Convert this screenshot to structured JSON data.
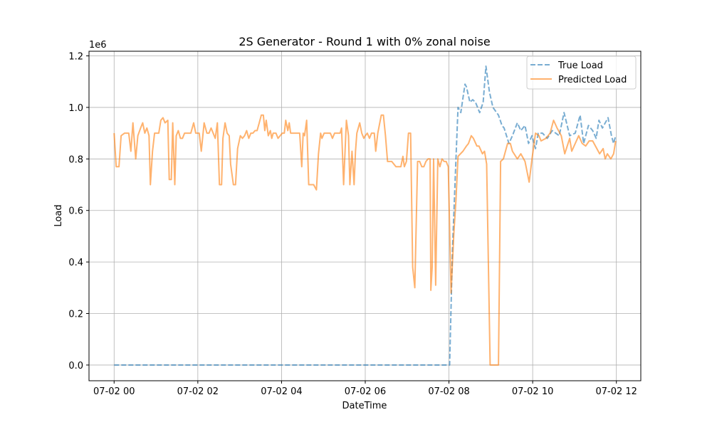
{
  "chart_data": {
    "type": "line",
    "title": "2S Generator - Round 1 with 0% zonal noise",
    "xlabel": "DateTime",
    "ylabel": "Load",
    "y_scale_label": "1e6",
    "x_unit": "minutes since 07-02 00:00",
    "xlim": [
      -36,
      755
    ],
    "ylim": [
      -0.061,
      1.218
    ],
    "grid": true,
    "legend_position": "top-right",
    "xticks": [
      {
        "value": 0,
        "label": "07-02 00"
      },
      {
        "value": 120,
        "label": "07-02 02"
      },
      {
        "value": 240,
        "label": "07-02 04"
      },
      {
        "value": 360,
        "label": "07-02 06"
      },
      {
        "value": 480,
        "label": "07-02 08"
      },
      {
        "value": 600,
        "label": "07-02 10"
      },
      {
        "value": 720,
        "label": "07-02 12"
      }
    ],
    "yticks": [
      {
        "value": 0,
        "label": "0.0"
      },
      {
        "value": 0.2,
        "label": "0.2"
      },
      {
        "value": 0.4,
        "label": "0.4"
      },
      {
        "value": 0.6,
        "label": "0.6"
      },
      {
        "value": 0.8,
        "label": "0.8"
      },
      {
        "value": 1.0,
        "label": "1.0"
      },
      {
        "value": 1.2,
        "label": "1.2"
      }
    ],
    "series": [
      {
        "name": "True Load",
        "color": "#1f77b4",
        "style": "dashed",
        "points": [
          [
            0,
            0
          ],
          [
            481,
            0
          ],
          [
            485,
            0.45
          ],
          [
            490,
            0.8
          ],
          [
            493,
            1.0
          ],
          [
            497,
            0.98
          ],
          [
            503,
            1.09
          ],
          [
            505,
            1.08
          ],
          [
            510,
            1.02
          ],
          [
            514,
            1.03
          ],
          [
            518,
            1.02
          ],
          [
            524,
            0.98
          ],
          [
            529,
            1.02
          ],
          [
            533,
            1.16
          ],
          [
            538,
            1.06
          ],
          [
            543,
            1.0
          ],
          [
            551,
            0.97
          ],
          [
            556,
            0.93
          ],
          [
            559,
            0.92
          ],
          [
            566,
            0.86
          ],
          [
            571,
            0.89
          ],
          [
            578,
            0.94
          ],
          [
            583,
            0.91
          ],
          [
            589,
            0.93
          ],
          [
            594,
            0.86
          ],
          [
            599,
            0.89
          ],
          [
            604,
            0.84
          ],
          [
            608,
            0.9
          ],
          [
            614,
            0.9
          ],
          [
            621,
            0.88
          ],
          [
            628,
            0.91
          ],
          [
            638,
            0.89
          ],
          [
            645,
            0.98
          ],
          [
            653,
            0.89
          ],
          [
            661,
            0.9
          ],
          [
            668,
            0.97
          ],
          [
            673,
            0.86
          ],
          [
            680,
            0.93
          ],
          [
            686,
            0.91
          ],
          [
            691,
            0.88
          ],
          [
            695,
            0.95
          ],
          [
            700,
            0.92
          ],
          [
            708,
            0.96
          ],
          [
            713,
            0.89
          ],
          [
            716,
            0.86
          ],
          [
            719,
            0.89
          ]
        ]
      },
      {
        "name": "Predicted Load",
        "color": "#ff7f0e",
        "style": "solid",
        "points": [
          [
            0,
            0.9
          ],
          [
            3,
            0.77
          ],
          [
            7,
            0.77
          ],
          [
            10,
            0.89
          ],
          [
            15,
            0.9
          ],
          [
            21,
            0.9
          ],
          [
            24,
            0.83
          ],
          [
            27,
            0.94
          ],
          [
            31,
            0.8
          ],
          [
            34,
            0.89
          ],
          [
            38,
            0.92
          ],
          [
            41,
            0.94
          ],
          [
            44,
            0.9
          ],
          [
            47,
            0.92
          ],
          [
            50,
            0.89
          ],
          [
            52,
            0.7
          ],
          [
            55,
            0.83
          ],
          [
            58,
            0.9
          ],
          [
            61,
            0.9
          ],
          [
            64,
            0.9
          ],
          [
            67,
            0.95
          ],
          [
            70,
            0.96
          ],
          [
            73,
            0.94
          ],
          [
            77,
            0.95
          ],
          [
            79,
            0.72
          ],
          [
            82,
            0.72
          ],
          [
            84,
            0.94
          ],
          [
            87,
            0.7
          ],
          [
            89,
            0.89
          ],
          [
            92,
            0.91
          ],
          [
            95,
            0.88
          ],
          [
            98,
            0.88
          ],
          [
            101,
            0.9
          ],
          [
            104,
            0.9
          ],
          [
            110,
            0.9
          ],
          [
            114,
            0.94
          ],
          [
            117,
            0.9
          ],
          [
            122,
            0.9
          ],
          [
            125,
            0.83
          ],
          [
            129,
            0.94
          ],
          [
            133,
            0.9
          ],
          [
            136,
            0.9
          ],
          [
            139,
            0.92
          ],
          [
            142,
            0.9
          ],
          [
            145,
            0.88
          ],
          [
            148,
            0.94
          ],
          [
            151,
            0.7
          ],
          [
            154,
            0.7
          ],
          [
            156,
            0.88
          ],
          [
            159,
            0.94
          ],
          [
            162,
            0.9
          ],
          [
            165,
            0.89
          ],
          [
            167,
            0.78
          ],
          [
            171,
            0.7
          ],
          [
            174,
            0.7
          ],
          [
            177,
            0.84
          ],
          [
            181,
            0.89
          ],
          [
            184,
            0.88
          ],
          [
            187,
            0.89
          ],
          [
            190,
            0.91
          ],
          [
            193,
            0.88
          ],
          [
            196,
            0.9
          ],
          [
            199,
            0.9
          ],
          [
            202,
            0.91
          ],
          [
            205,
            0.91
          ],
          [
            208,
            0.94
          ],
          [
            211,
            0.97
          ],
          [
            214,
            0.97
          ],
          [
            216,
            0.91
          ],
          [
            218,
            0.95
          ],
          [
            221,
            0.89
          ],
          [
            224,
            0.91
          ],
          [
            226,
            0.88
          ],
          [
            228,
            0.9
          ],
          [
            232,
            0.9
          ],
          [
            235,
            0.88
          ],
          [
            238,
            0.89
          ],
          [
            241,
            0.9
          ],
          [
            244,
            0.9
          ],
          [
            246,
            0.95
          ],
          [
            249,
            0.91
          ],
          [
            251,
            0.94
          ],
          [
            253,
            0.9
          ],
          [
            256,
            0.9
          ],
          [
            260,
            0.9
          ],
          [
            263,
            0.9
          ],
          [
            266,
            0.9
          ],
          [
            269,
            0.77
          ],
          [
            271,
            0.9
          ],
          [
            273,
            0.89
          ],
          [
            276,
            0.95
          ],
          [
            279,
            0.7
          ],
          [
            283,
            0.7
          ],
          [
            286,
            0.7
          ],
          [
            290,
            0.68
          ],
          [
            293,
            0.82
          ],
          [
            296,
            0.9
          ],
          [
            298,
            0.88
          ],
          [
            301,
            0.9
          ],
          [
            306,
            0.9
          ],
          [
            310,
            0.9
          ],
          [
            313,
            0.88
          ],
          [
            316,
            0.9
          ],
          [
            320,
            0.9
          ],
          [
            324,
            0.9
          ],
          [
            326,
            0.92
          ],
          [
            329,
            0.7
          ],
          [
            333,
            0.95
          ],
          [
            336,
            0.89
          ],
          [
            338,
            0.7
          ],
          [
            341,
            0.83
          ],
          [
            344,
            0.7
          ],
          [
            346,
            0.83
          ],
          [
            348,
            0.9
          ],
          [
            352,
            0.94
          ],
          [
            355,
            0.9
          ],
          [
            358,
            0.88
          ],
          [
            360,
            0.89
          ],
          [
            363,
            0.9
          ],
          [
            366,
            0.88
          ],
          [
            369,
            0.9
          ],
          [
            373,
            0.9
          ],
          [
            375,
            0.83
          ],
          [
            378,
            0.9
          ],
          [
            383,
            0.97
          ],
          [
            386,
            0.97
          ],
          [
            389,
            0.89
          ],
          [
            392,
            0.79
          ],
          [
            395,
            0.79
          ],
          [
            398,
            0.79
          ],
          [
            401,
            0.78
          ],
          [
            404,
            0.77
          ],
          [
            408,
            0.77
          ],
          [
            411,
            0.77
          ],
          [
            414,
            0.81
          ],
          [
            416,
            0.77
          ],
          [
            419,
            0.79
          ],
          [
            422,
            0.9
          ],
          [
            425,
            0.9
          ],
          [
            428,
            0.38
          ],
          [
            431,
            0.3
          ],
          [
            435,
            0.79
          ],
          [
            438,
            0.79
          ],
          [
            441,
            0.77
          ],
          [
            444,
            0.77
          ],
          [
            447,
            0.79
          ],
          [
            450,
            0.8
          ],
          [
            453,
            0.8
          ],
          [
            454,
            0.29
          ],
          [
            456,
            0.38
          ],
          [
            458,
            0.8
          ],
          [
            461,
            0.31
          ],
          [
            464,
            0.8
          ],
          [
            467,
            0.77
          ],
          [
            470,
            0.8
          ],
          [
            473,
            0.79
          ],
          [
            476,
            0.79
          ],
          [
            479,
            0.77
          ],
          [
            483,
            0.28
          ],
          [
            487,
            0.51
          ],
          [
            490,
            0.64
          ],
          [
            493,
            0.81
          ],
          [
            500,
            0.83
          ],
          [
            505,
            0.85
          ],
          [
            508,
            0.86
          ],
          [
            512,
            0.89
          ],
          [
            515,
            0.88
          ],
          [
            520,
            0.85
          ],
          [
            523,
            0.85
          ],
          [
            528,
            0.82
          ],
          [
            531,
            0.83
          ],
          [
            534,
            0.78
          ],
          [
            539,
            0
          ],
          [
            551,
            0
          ],
          [
            554,
            0.79
          ],
          [
            558,
            0.8
          ],
          [
            564,
            0.86
          ],
          [
            568,
            0.86
          ],
          [
            571,
            0.83
          ],
          [
            578,
            0.8
          ],
          [
            583,
            0.82
          ],
          [
            589,
            0.79
          ],
          [
            595,
            0.71
          ],
          [
            599,
            0.8
          ],
          [
            604,
            0.9
          ],
          [
            609,
            0.89
          ],
          [
            612,
            0.87
          ],
          [
            619,
            0.88
          ],
          [
            625,
            0.9
          ],
          [
            630,
            0.95
          ],
          [
            635,
            0.92
          ],
          [
            641,
            0.89
          ],
          [
            646,
            0.82
          ],
          [
            653,
            0.88
          ],
          [
            656,
            0.83
          ],
          [
            661,
            0.86
          ],
          [
            666,
            0.89
          ],
          [
            671,
            0.86
          ],
          [
            676,
            0.85
          ],
          [
            681,
            0.87
          ],
          [
            686,
            0.87
          ],
          [
            696,
            0.82
          ],
          [
            701,
            0.84
          ],
          [
            704,
            0.8
          ],
          [
            707,
            0.82
          ],
          [
            712,
            0.8
          ],
          [
            716,
            0.82
          ],
          [
            719,
            0.87
          ]
        ]
      }
    ]
  }
}
